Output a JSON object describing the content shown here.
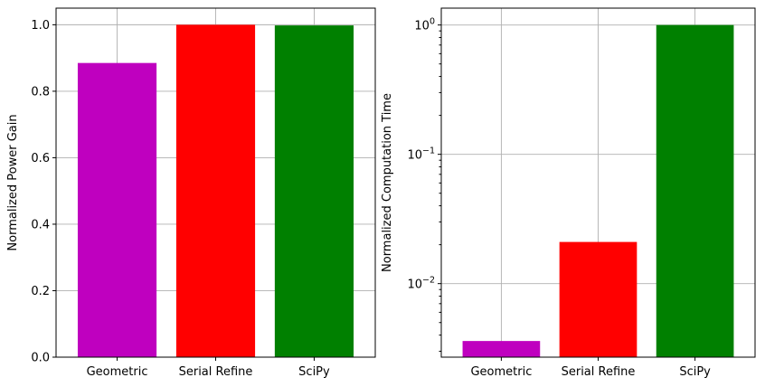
{
  "chart_data": [
    {
      "type": "bar",
      "categories": [
        "Geometric",
        "Serial Refine",
        "SciPy"
      ],
      "values": [
        0.885,
        1.0,
        0.998
      ],
      "colors": [
        "#bf00bf",
        "#ff0000",
        "#008000"
      ],
      "xlabel": "",
      "ylabel": "Normalized Power Gain",
      "ylim": [
        0,
        1.05
      ],
      "yscale": "linear",
      "yticks": [
        0.0,
        0.2,
        0.4,
        0.6,
        0.8,
        1.0
      ],
      "ytick_labels": [
        "0.0",
        "0.2",
        "0.4",
        "0.6",
        "0.8",
        "1.0"
      ],
      "grid": true
    },
    {
      "type": "bar",
      "categories": [
        "Geometric",
        "Serial Refine",
        "SciPy"
      ],
      "values": [
        0.0036,
        0.021,
        1.0
      ],
      "colors": [
        "#bf00bf",
        "#ff0000",
        "#008000"
      ],
      "xlabel": "",
      "ylabel": "Normalized Computation Time",
      "ylim": [
        0.0027,
        1.35
      ],
      "yscale": "log",
      "yticks": [
        0.01,
        0.1,
        1
      ],
      "ytick_labels": [
        [
          "10",
          "−2"
        ],
        [
          "10",
          "−1"
        ],
        [
          "10",
          "0"
        ]
      ],
      "grid": true
    }
  ]
}
